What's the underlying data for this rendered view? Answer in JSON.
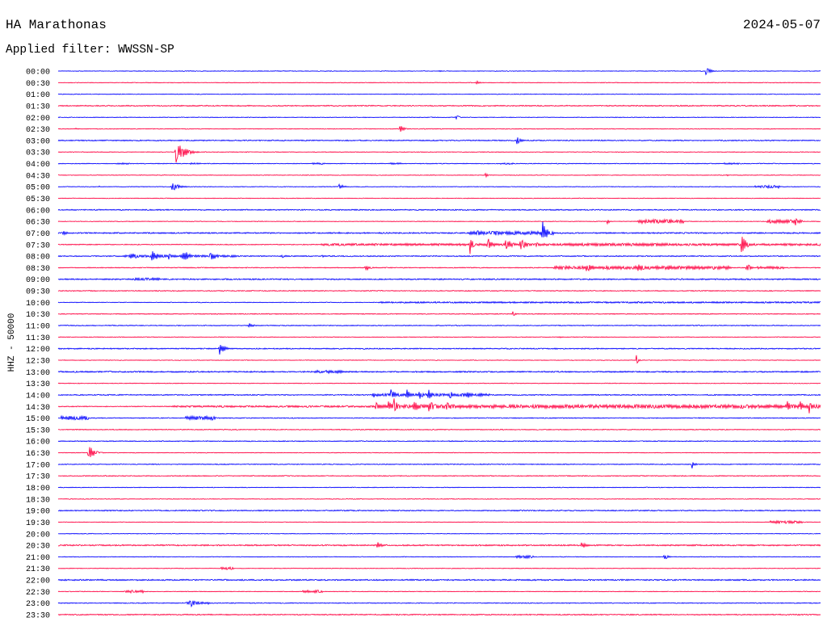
{
  "header": {
    "station": "HA Marathonas",
    "date": "2024-05-07",
    "filter_label": "Applied filter: WWSSN-SP"
  },
  "chart_data": {
    "type": "line",
    "ylabel": "HHZ - 50000",
    "xlim": [
      0,
      30
    ],
    "colors": [
      "#0000ff",
      "#ff0040"
    ],
    "grid": false,
    "traces": [
      {
        "label": "00:00",
        "noise": 0.03,
        "events": [
          [
            25.5,
            0.4,
            0.5
          ],
          [
            15.0,
            0.4,
            0.08
          ]
        ],
        "windows": []
      },
      {
        "label": "00:30",
        "noise": 0.03,
        "events": [
          [
            16.45,
            0.35,
            0.22
          ]
        ],
        "windows": []
      },
      {
        "label": "01:00",
        "noise": 0.03,
        "events": [],
        "windows": []
      },
      {
        "label": "01:30",
        "noise": 0.05,
        "events": [],
        "windows": []
      },
      {
        "label": "02:00",
        "noise": 0.03,
        "events": [
          [
            15.65,
            0.3,
            0.35
          ]
        ],
        "windows": []
      },
      {
        "label": "02:30",
        "noise": 0.03,
        "events": [
          [
            13.45,
            0.4,
            0.4
          ],
          [
            14.4,
            0.2,
            0.08
          ],
          [
            18.85,
            0.2,
            0.08
          ],
          [
            0.7,
            0.3,
            0.08
          ]
        ],
        "windows": []
      },
      {
        "label": "03:00",
        "noise": 0.05,
        "events": [
          [
            18.05,
            0.4,
            0.45
          ]
        ],
        "windows": []
      },
      {
        "label": "03:30",
        "noise": 0.03,
        "events": [
          [
            4.65,
            0.9,
            1.1
          ],
          [
            28.0,
            0.15,
            0.1
          ],
          [
            7.4,
            0.1,
            0.08
          ]
        ],
        "windows": []
      },
      {
        "label": "04:00",
        "noise": 0.035,
        "events": [],
        "windows": [
          [
            2.3,
            2.8,
            0.07
          ],
          [
            5.2,
            5.6,
            0.07
          ],
          [
            10.0,
            10.5,
            0.08
          ],
          [
            13.0,
            13.5,
            0.07
          ],
          [
            17.4,
            17.9,
            0.07
          ],
          [
            26.2,
            26.8,
            0.07
          ]
        ]
      },
      {
        "label": "04:30",
        "noise": 0.03,
        "events": [
          [
            16.8,
            0.2,
            0.4
          ],
          [
            26.3,
            0.2,
            0.15
          ],
          [
            14.5,
            0.2,
            0.06
          ],
          [
            12.4,
            0.1,
            0.05
          ]
        ],
        "windows": []
      },
      {
        "label": "05:00",
        "noise": 0.03,
        "events": [
          [
            4.5,
            0.8,
            0.4
          ],
          [
            11.05,
            0.5,
            0.3
          ],
          [
            1.6,
            0.15,
            0.1
          ]
        ],
        "windows": [
          [
            27.4,
            28.4,
            0.12
          ]
        ]
      },
      {
        "label": "05:30",
        "noise": 0.03,
        "events": [],
        "windows": []
      },
      {
        "label": "06:00",
        "noise": 0.05,
        "events": [],
        "windows": []
      },
      {
        "label": "06:30",
        "noise": 0.03,
        "events": [
          [
            21.6,
            0.2,
            0.45
          ],
          [
            23.5,
            0.2,
            0.3
          ],
          [
            24.1,
            0.2,
            0.3
          ],
          [
            24.5,
            0.2,
            0.25
          ],
          [
            29.0,
            0.3,
            0.45
          ],
          [
            18.0,
            0.1,
            0.05
          ]
        ],
        "windows": [
          [
            22.8,
            24.6,
            0.18
          ],
          [
            27.9,
            29.3,
            0.15
          ]
        ]
      },
      {
        "label": "07:00",
        "noise": 0.06,
        "events": [
          [
            0.2,
            0.4,
            0.25
          ],
          [
            19.05,
            0.5,
            1.4
          ],
          [
            16.5,
            0.3,
            0.35
          ],
          [
            17.2,
            0.3,
            0.3
          ],
          [
            18.6,
            0.2,
            0.25
          ],
          [
            11.05,
            0.3,
            0.12
          ],
          [
            13.75,
            0.3,
            0.1
          ]
        ],
        "windows": [
          [
            16.2,
            19.5,
            0.15
          ]
        ]
      },
      {
        "label": "07:30",
        "noise": 0.04,
        "events": [
          [
            16.2,
            0.3,
            0.9
          ],
          [
            16.9,
            0.6,
            0.6
          ],
          [
            17.6,
            0.6,
            0.7
          ],
          [
            18.2,
            0.6,
            0.55
          ],
          [
            18.8,
            0.5,
            0.3
          ],
          [
            26.9,
            0.4,
            1.3
          ],
          [
            25.6,
            0.2,
            0.2
          ]
        ],
        "windows": [
          [
            10.3,
            30,
            0.1
          ],
          [
            20,
            24,
            0.12
          ]
        ]
      },
      {
        "label": "08:00",
        "noise": 0.05,
        "events": [
          [
            2.85,
            0.5,
            0.55
          ],
          [
            3.7,
            0.6,
            0.6
          ],
          [
            4.35,
            0.3,
            0.3
          ],
          [
            4.9,
            0.6,
            0.7
          ],
          [
            6.0,
            0.5,
            0.6
          ],
          [
            8.8,
            0.6,
            0.15
          ],
          [
            10.4,
            0.5,
            0.1
          ]
        ],
        "windows": [
          [
            2.5,
            7,
            0.1
          ]
        ]
      },
      {
        "label": "08:30",
        "noise": 0.04,
        "events": [
          [
            12.1,
            0.4,
            0.45
          ],
          [
            20.8,
            0.8,
            0.45
          ],
          [
            22.8,
            0.9,
            0.4
          ],
          [
            24.0,
            0.6,
            0.3
          ],
          [
            25.0,
            0.5,
            0.25
          ],
          [
            27.1,
            0.5,
            0.35
          ],
          [
            28.3,
            0.2,
            0.2
          ]
        ],
        "windows": [
          [
            19.5,
            26.5,
            0.15
          ],
          [
            27.5,
            28.6,
            0.12
          ]
        ]
      },
      {
        "label": "09:00",
        "noise": 0.06,
        "events": [
          [
            19.3,
            0.2,
            0.1
          ]
        ],
        "windows": [
          [
            3.0,
            4.0,
            0.12
          ]
        ]
      },
      {
        "label": "09:30",
        "noise": 0.04,
        "events": [],
        "windows": []
      },
      {
        "label": "10:00",
        "noise": 0.03,
        "events": [],
        "windows": [
          [
            12.6,
            30,
            0.07
          ]
        ]
      },
      {
        "label": "10:30",
        "noise": 0.04,
        "events": [
          [
            17.9,
            0.25,
            0.35
          ]
        ],
        "windows": []
      },
      {
        "label": "11:00",
        "noise": 0.04,
        "events": [
          [
            7.5,
            0.5,
            0.25
          ],
          [
            27.1,
            0.3,
            0.1
          ]
        ],
        "windows": []
      },
      {
        "label": "11:30",
        "noise": 0.03,
        "events": [
          [
            14.9,
            0.3,
            0.07
          ],
          [
            19.7,
            0.4,
            0.1
          ]
        ],
        "windows": []
      },
      {
        "label": "12:00",
        "noise": 0.05,
        "events": [
          [
            6.35,
            0.5,
            0.65
          ]
        ],
        "windows": []
      },
      {
        "label": "12:30",
        "noise": 0.03,
        "events": [
          [
            22.75,
            0.2,
            0.55
          ]
        ],
        "windows": []
      },
      {
        "label": "13:00",
        "noise": 0.06,
        "events": [],
        "windows": [
          [
            10.1,
            11.2,
            0.13
          ]
        ]
      },
      {
        "label": "13:30",
        "noise": 0.03,
        "events": [
          [
            0.8,
            0.1,
            0.1
          ]
        ],
        "windows": []
      },
      {
        "label": "14:00",
        "noise": 0.05,
        "events": [
          [
            12.4,
            0.3,
            0.3
          ],
          [
            13.1,
            0.5,
            0.6
          ],
          [
            13.7,
            0.5,
            0.55
          ],
          [
            14.2,
            0.4,
            0.6
          ],
          [
            14.55,
            0.4,
            0.65
          ],
          [
            15.4,
            0.3,
            0.55
          ],
          [
            16.1,
            0.4,
            0.45
          ],
          [
            16.6,
            0.4,
            0.25
          ]
        ],
        "windows": [
          [
            12.3,
            17.0,
            0.12
          ]
        ]
      },
      {
        "label": "14:30",
        "noise": 0.04,
        "events": [
          [
            12.5,
            0.6,
            0.4
          ],
          [
            13.0,
            0.5,
            0.6
          ],
          [
            13.2,
            0.4,
            0.9
          ],
          [
            14.0,
            0.6,
            0.6
          ],
          [
            14.6,
            0.7,
            0.6
          ],
          [
            15.3,
            0.6,
            0.4
          ],
          [
            17.8,
            0.5,
            0.2
          ],
          [
            20.4,
            0.5,
            0.2
          ],
          [
            23.1,
            0.5,
            0.2
          ],
          [
            25.3,
            0.5,
            0.2
          ],
          [
            28.7,
            0.4,
            0.8
          ],
          [
            29.2,
            0.3,
            0.7
          ],
          [
            29.55,
            0.3,
            0.7
          ]
        ],
        "windows": [
          [
            4.5,
            12.5,
            0.08
          ],
          [
            12.5,
            30,
            0.16
          ]
        ]
      },
      {
        "label": "15:00",
        "noise": 0.04,
        "events": [
          [
            0.5,
            0.2,
            0.25
          ]
        ],
        "windows": [
          [
            0.1,
            1.2,
            0.18
          ],
          [
            5.0,
            6.2,
            0.18
          ]
        ]
      },
      {
        "label": "15:30",
        "noise": 0.04,
        "events": [],
        "windows": []
      },
      {
        "label": "16:00",
        "noise": 0.04,
        "events": [
          [
            15.5,
            0.2,
            0.12
          ]
        ],
        "windows": []
      },
      {
        "label": "16:30",
        "noise": 0.03,
        "events": [
          [
            1.2,
            0.6,
            0.7
          ]
        ],
        "windows": []
      },
      {
        "label": "17:00",
        "noise": 0.04,
        "events": [
          [
            24.95,
            0.3,
            0.4
          ],
          [
            4.8,
            0.2,
            0.06
          ],
          [
            11.5,
            0.2,
            0.07
          ]
        ],
        "windows": []
      },
      {
        "label": "17:30",
        "noise": 0.04,
        "events": [
          [
            24.25,
            0.15,
            0.1
          ]
        ],
        "windows": []
      },
      {
        "label": "18:00",
        "noise": 0.03,
        "events": [
          [
            18.95,
            0.15,
            0.1
          ],
          [
            0.1,
            0.1,
            0.08
          ]
        ],
        "windows": []
      },
      {
        "label": "18:30",
        "noise": 0.03,
        "events": [],
        "windows": []
      },
      {
        "label": "19:00",
        "noise": 0.05,
        "events": [
          [
            4.85,
            0.1,
            0.1
          ]
        ],
        "windows": []
      },
      {
        "label": "19:30",
        "noise": 0.03,
        "events": [],
        "windows": [
          [
            28.0,
            29.3,
            0.12
          ]
        ]
      },
      {
        "label": "20:00",
        "noise": 0.03,
        "events": [],
        "windows": []
      },
      {
        "label": "20:30",
        "noise": 0.06,
        "events": [
          [
            12.55,
            0.4,
            0.45
          ],
          [
            20.6,
            0.5,
            0.35
          ]
        ],
        "windows": []
      },
      {
        "label": "21:00",
        "noise": 0.03,
        "events": [
          [
            23.85,
            0.4,
            0.3
          ],
          [
            14.95,
            0.1,
            0.1
          ],
          [
            26.9,
            0.2,
            0.06
          ]
        ],
        "windows": [
          [
            18.0,
            18.7,
            0.12
          ]
        ]
      },
      {
        "label": "21:30",
        "noise": 0.03,
        "events": [
          [
            15.1,
            0.1,
            0.08
          ]
        ],
        "windows": [
          [
            6.4,
            6.9,
            0.12
          ]
        ]
      },
      {
        "label": "22:00",
        "noise": 0.06,
        "events": [],
        "windows": []
      },
      {
        "label": "22:30",
        "noise": 0.03,
        "events": [],
        "windows": [
          [
            2.6,
            3.4,
            0.12
          ],
          [
            9.6,
            10.4,
            0.12
          ]
        ]
      },
      {
        "label": "23:00",
        "noise": 0.04,
        "events": [
          [
            5.2,
            0.6,
            0.4
          ],
          [
            26.9,
            0.1,
            0.06
          ]
        ],
        "windows": [
          [
            5.0,
            6.0,
            0.12
          ]
        ]
      },
      {
        "label": "23:30",
        "noise": 0.05,
        "events": [],
        "windows": []
      }
    ]
  }
}
